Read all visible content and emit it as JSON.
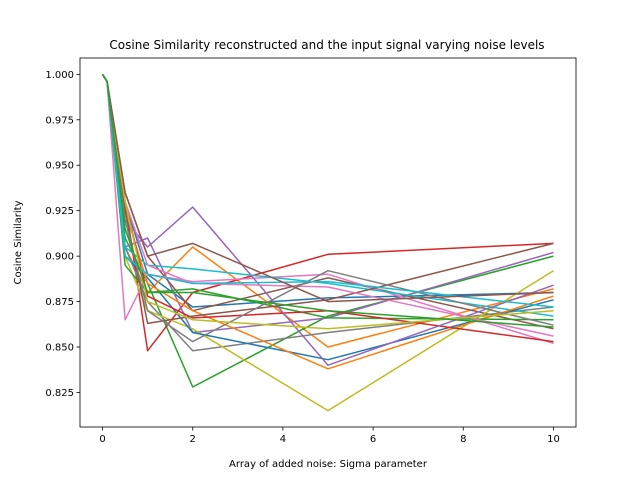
{
  "chart_data": {
    "type": "line",
    "title": "Cosine Similarity reconstructed and the input signal varying noise levels",
    "xlabel": "Array of added noise: Sigma parameter",
    "ylabel": "Cosine Similarity",
    "xlim": [
      -0.5,
      10.5
    ],
    "ylim": [
      0.806,
      1.009
    ],
    "xticks": [
      0,
      2,
      4,
      6,
      8,
      10
    ],
    "xtick_labels": [
      "0",
      "2",
      "4",
      "6",
      "8",
      "10"
    ],
    "yticks": [
      0.825,
      0.85,
      0.875,
      0.9,
      0.925,
      0.95,
      0.975,
      1.0
    ],
    "ytick_labels": [
      "0.825",
      "0.850",
      "0.875",
      "0.900",
      "0.925",
      "0.950",
      "0.975",
      "1.000"
    ],
    "grid": false,
    "legend": "none",
    "x": [
      0,
      0.1,
      0.5,
      1,
      2,
      5,
      10
    ],
    "series": [
      {
        "color": "#1f77b4",
        "values": [
          1.0,
          0.996,
          0.93,
          0.89,
          0.872,
          0.877,
          0.88
        ]
      },
      {
        "color": "#ff7f0e",
        "values": [
          1.0,
          0.996,
          0.905,
          0.88,
          0.905,
          0.85,
          0.882
        ]
      },
      {
        "color": "#2ca02c",
        "values": [
          1.0,
          0.996,
          0.91,
          0.885,
          0.828,
          0.867,
          0.9
        ]
      },
      {
        "color": "#d62728",
        "values": [
          1.0,
          0.996,
          0.93,
          0.848,
          0.88,
          0.901,
          0.907
        ]
      },
      {
        "color": "#9467bd",
        "values": [
          1.0,
          0.996,
          0.905,
          0.91,
          0.858,
          0.866,
          0.902
        ]
      },
      {
        "color": "#8c564b",
        "values": [
          1.0,
          0.996,
          0.935,
          0.9,
          0.87,
          0.888,
          0.86
        ]
      },
      {
        "color": "#e377c2",
        "values": [
          1.0,
          0.996,
          0.865,
          0.89,
          0.886,
          0.89,
          0.852
        ]
      },
      {
        "color": "#7f7f7f",
        "values": [
          1.0,
          0.996,
          0.905,
          0.875,
          0.848,
          0.858,
          0.872
        ]
      },
      {
        "color": "#bcbd22",
        "values": [
          1.0,
          0.996,
          0.9,
          0.87,
          0.86,
          0.815,
          0.892
        ]
      },
      {
        "color": "#17becf",
        "values": [
          1.0,
          0.996,
          0.905,
          0.895,
          0.893,
          0.885,
          0.867
        ]
      },
      {
        "color": "#1f77b4",
        "values": [
          1.0,
          0.996,
          0.9,
          0.888,
          0.858,
          0.843,
          0.876
        ]
      },
      {
        "color": "#ff7f0e",
        "values": [
          1.0,
          0.996,
          0.925,
          0.885,
          0.87,
          0.838,
          0.878
        ]
      },
      {
        "color": "#2ca02c",
        "values": [
          1.0,
          0.996,
          0.895,
          0.88,
          0.882,
          0.866,
          0.865
        ]
      },
      {
        "color": "#d62728",
        "values": [
          1.0,
          0.996,
          0.93,
          0.878,
          0.866,
          0.87,
          0.853
        ]
      },
      {
        "color": "#9467bd",
        "values": [
          1.0,
          0.996,
          0.92,
          0.905,
          0.927,
          0.84,
          0.884
        ]
      },
      {
        "color": "#8c564b",
        "values": [
          1.0,
          0.996,
          0.925,
          0.863,
          0.867,
          0.876,
          0.907
        ]
      },
      {
        "color": "#e377c2",
        "values": [
          1.0,
          0.996,
          0.93,
          0.895,
          0.885,
          0.883,
          0.856
        ]
      },
      {
        "color": "#7f7f7f",
        "values": [
          1.0,
          0.996,
          0.92,
          0.87,
          0.853,
          0.892,
          0.862
        ]
      },
      {
        "color": "#bcbd22",
        "values": [
          1.0,
          0.996,
          0.93,
          0.875,
          0.865,
          0.86,
          0.87
        ]
      },
      {
        "color": "#17becf",
        "values": [
          1.0,
          0.996,
          0.9,
          0.89,
          0.885,
          0.886,
          0.872
        ]
      },
      {
        "color": "#8c564b",
        "values": [
          1.0,
          0.996,
          0.935,
          0.9,
          0.907,
          0.875,
          0.88
        ]
      },
      {
        "color": "#2ca02c",
        "values": [
          1.0,
          0.996,
          0.915,
          0.88,
          0.88,
          0.87,
          0.861
        ]
      }
    ]
  }
}
